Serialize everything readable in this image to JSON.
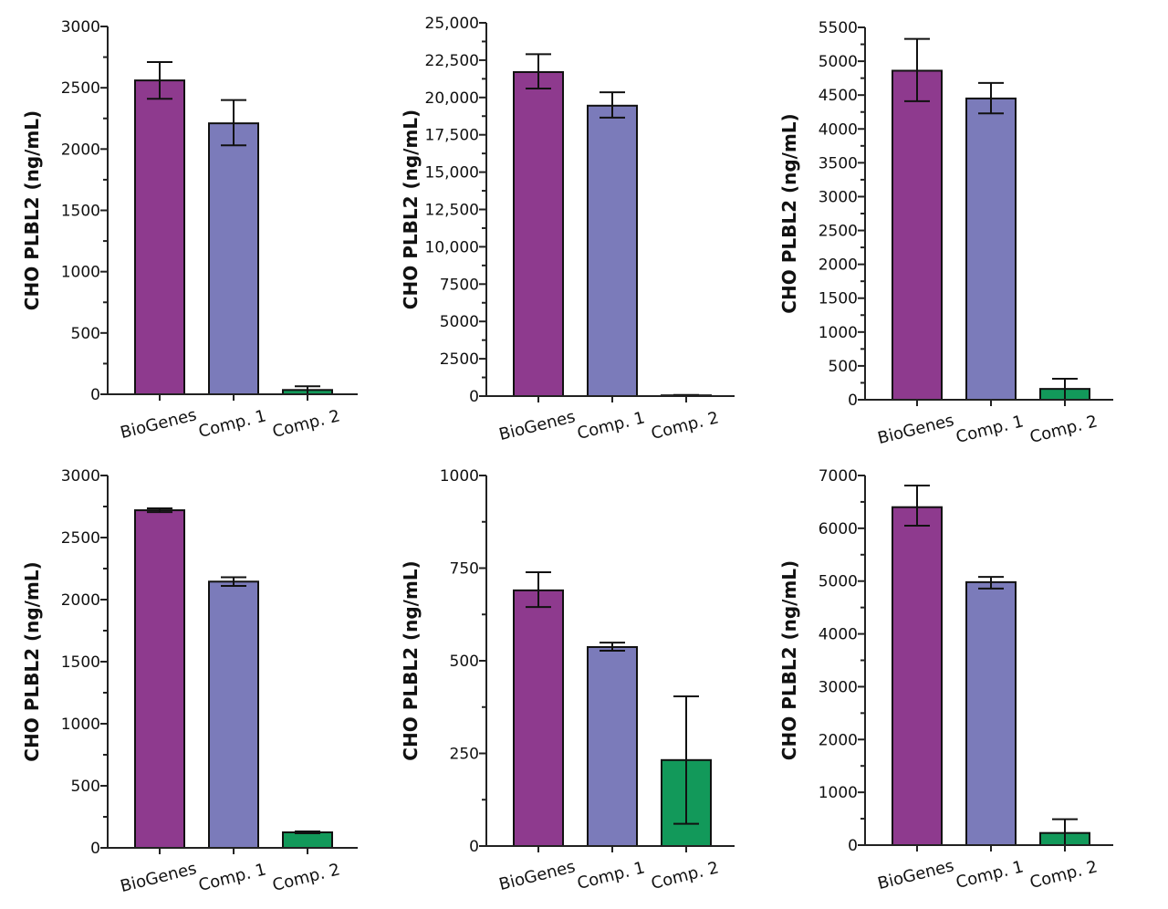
{
  "colors": {
    "BioGenes": "#8e3a8e",
    "Comp. 1": "#7b7bba",
    "Comp. 2": "#12995a",
    "axis": "#222222"
  },
  "chart_data": [
    {
      "type": "bar",
      "ylabel": "CHO PLBL2 (ng/mL)",
      "ylim": [
        0,
        3000
      ],
      "yticks": [
        0,
        500,
        1000,
        1500,
        2000,
        2500,
        3000
      ],
      "ytick_labels": [
        "0",
        "500",
        "1000",
        "1500",
        "2000",
        "2500",
        "3000"
      ],
      "categories": [
        "BioGenes",
        "Comp. 1",
        "Comp. 2"
      ],
      "values": [
        2560,
        2210,
        35
      ],
      "error_low": [
        2410,
        2030,
        0
      ],
      "error_high": [
        2710,
        2400,
        65
      ]
    },
    {
      "type": "bar",
      "ylabel": "CHO PLBL2 (ng/mL)",
      "ylim": [
        0,
        25000
      ],
      "yticks": [
        0,
        2500,
        5000,
        7500,
        10000,
        12500,
        15000,
        17500,
        20000,
        22500,
        25000
      ],
      "ytick_labels": [
        "0",
        "2500",
        "5000",
        "7500",
        "10,000",
        "12,500",
        "15,000",
        "17,500",
        "20,000",
        "22,500",
        "25,000"
      ],
      "categories": [
        "BioGenes",
        "Comp. 1",
        "Comp. 2"
      ],
      "values": [
        21700,
        19450,
        50
      ],
      "error_low": [
        20600,
        18650,
        0
      ],
      "error_high": [
        22900,
        20350,
        80
      ]
    },
    {
      "type": "bar",
      "ylabel": "CHO PLBL2 (ng/mL)",
      "ylim": [
        0,
        5500
      ],
      "yticks": [
        0,
        500,
        1000,
        1500,
        2000,
        2500,
        3000,
        3500,
        4000,
        4500,
        5000,
        5500
      ],
      "ytick_labels": [
        "0",
        "500",
        "1000",
        "1500",
        "2000",
        "2500",
        "3000",
        "3500",
        "4000",
        "4500",
        "5000",
        "5500"
      ],
      "categories": [
        "BioGenes",
        "Comp. 1",
        "Comp. 2"
      ],
      "values": [
        4860,
        4450,
        160
      ],
      "error_low": [
        4410,
        4230,
        0
      ],
      "error_high": [
        5330,
        4680,
        310
      ]
    },
    {
      "type": "bar",
      "ylabel": "CHO PLBL2 (ng/mL)",
      "ylim": [
        0,
        3000
      ],
      "yticks": [
        0,
        500,
        1000,
        1500,
        2000,
        2500,
        3000
      ],
      "ytick_labels": [
        "0",
        "500",
        "1000",
        "1500",
        "2000",
        "2500",
        "3000"
      ],
      "categories": [
        "BioGenes",
        "Comp. 1",
        "Comp. 2"
      ],
      "values": [
        2720,
        2145,
        125
      ],
      "error_low": [
        2705,
        2110,
        118
      ],
      "error_high": [
        2735,
        2180,
        132
      ]
    },
    {
      "type": "bar",
      "ylabel": "CHO PLBL2 (ng/mL)",
      "ylim": [
        0,
        1000
      ],
      "yticks": [
        0,
        250,
        500,
        750,
        1000
      ],
      "ytick_labels": [
        "0",
        "250",
        "500",
        "750",
        "1000"
      ],
      "categories": [
        "BioGenes",
        "Comp. 1",
        "Comp. 2"
      ],
      "values": [
        690,
        537,
        232
      ],
      "error_low": [
        645,
        527,
        60
      ],
      "error_high": [
        739,
        549,
        404
      ]
    },
    {
      "type": "bar",
      "ylabel": "CHO PLBL2 (ng/mL)",
      "ylim": [
        0,
        7000
      ],
      "yticks": [
        0,
        1000,
        2000,
        3000,
        4000,
        5000,
        6000,
        7000
      ],
      "ytick_labels": [
        "0",
        "1000",
        "2000",
        "3000",
        "4000",
        "5000",
        "6000",
        "7000"
      ],
      "categories": [
        "BioGenes",
        "Comp. 1",
        "Comp. 2"
      ],
      "values": [
        6400,
        4980,
        230
      ],
      "error_low": [
        6050,
        4860,
        0
      ],
      "error_high": [
        6810,
        5080,
        490
      ]
    }
  ]
}
